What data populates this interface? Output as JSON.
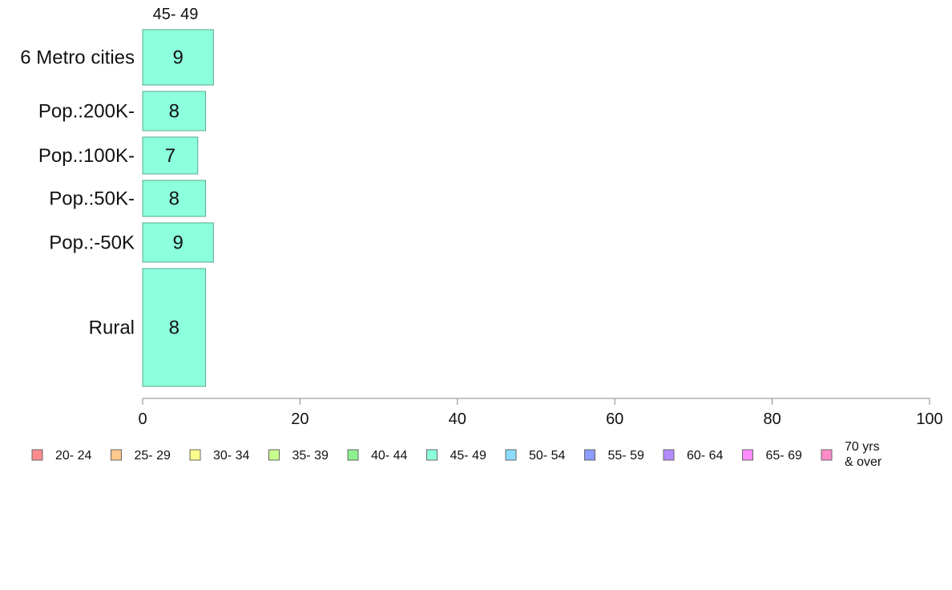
{
  "chart_data": {
    "type": "bar",
    "orientation": "horizontal",
    "stacked": true,
    "series_title": "45- 49",
    "categories": [
      "6 Metro cities",
      "Pop.:200K-",
      "Pop.:100K-",
      "Pop.:50K-",
      "Pop.:-50K",
      "Rural"
    ],
    "series": [
      {
        "name": "45- 49",
        "color": "#8cffdc",
        "values": [
          9,
          8,
          7,
          8,
          9,
          8
        ],
        "value_labels": [
          "9",
          "8",
          "7",
          "8",
          "9",
          "8"
        ]
      }
    ],
    "xlim": [
      0,
      100
    ],
    "xticks": [
      "0",
      "20",
      "40",
      "60",
      "80",
      "100"
    ],
    "grid": false,
    "legend_position": "bottom",
    "legend": [
      {
        "label": "20- 24",
        "color": "#ff8c8c"
      },
      {
        "label": "25- 29",
        "color": "#ffc88c"
      },
      {
        "label": "30- 34",
        "color": "#ffff8c"
      },
      {
        "label": "35- 39",
        "color": "#c8ff8c"
      },
      {
        "label": "40- 44",
        "color": "#8cf08c"
      },
      {
        "label": "45- 49",
        "color": "#8cffdc"
      },
      {
        "label": "50- 54",
        "color": "#8cdcff"
      },
      {
        "label": "55- 59",
        "color": "#8c9cff"
      },
      {
        "label": "60- 64",
        "color": "#b48cff"
      },
      {
        "label": "65- 69",
        "color": "#ff8cff"
      },
      {
        "label": "70 yrs\n& over",
        "color": "#ff8cc8"
      }
    ]
  }
}
